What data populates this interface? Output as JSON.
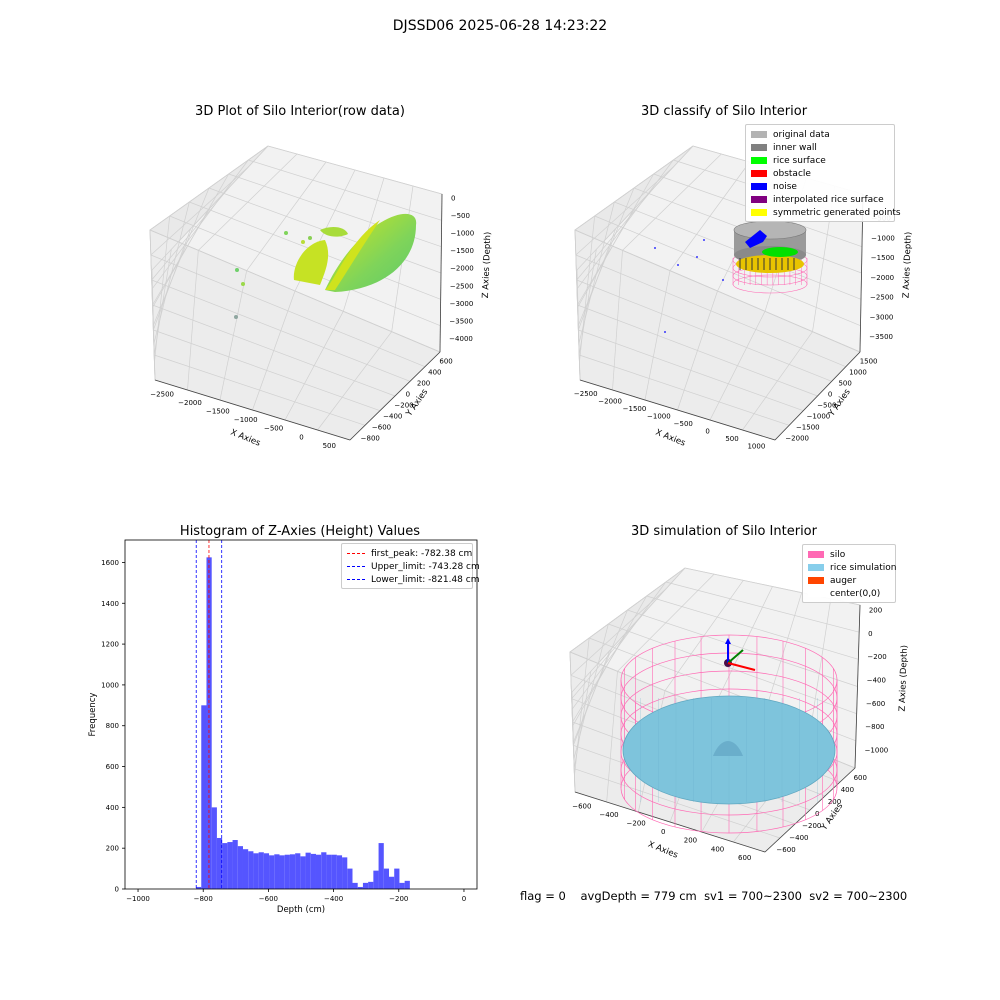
{
  "suptitle": "DJSSD06 2025-06-28 14:23:22",
  "panels": {
    "raw": {
      "title": "3D Plot of Silo Interior(row data)",
      "xlabel": "X Axies",
      "ylabel": "Y Axies",
      "zlabel": "Z Axies (Depth)",
      "xticks": [
        "−2500",
        "−2000",
        "−1500",
        "−1000",
        "−500",
        "0",
        "500"
      ],
      "yticks": [
        "−800",
        "−600",
        "−400",
        "−200",
        "0",
        "200",
        "400",
        "600"
      ],
      "zticks": [
        "0",
        "−500",
        "−1000",
        "−1500",
        "−2000",
        "−2500",
        "−3000",
        "−3500",
        "−4000"
      ]
    },
    "classify": {
      "title": "3D classify of Silo Interior",
      "xlabel": "X Axies",
      "ylabel": "Y Axies",
      "zlabel": "Z Axies (Depth)",
      "xticks": [
        "−2500",
        "−2000",
        "−1500",
        "−1000",
        "−500",
        "0",
        "500",
        "1000"
      ],
      "yticks": [
        "−2000",
        "−1500",
        "−1000",
        "−500",
        "0",
        "500",
        "1000",
        "1500"
      ],
      "zticks": [
        "0",
        "−500",
        "−1000",
        "−1500",
        "−2000",
        "−2500",
        "−3000",
        "−3500"
      ],
      "legend": [
        {
          "label": "original data",
          "color": "#b3b3b3"
        },
        {
          "label": "inner wall",
          "color": "#808080"
        },
        {
          "label": "rice surface",
          "color": "#00ff00"
        },
        {
          "label": "obstacle",
          "color": "#ff0000"
        },
        {
          "label": "noise",
          "color": "#0000ff"
        },
        {
          "label": "interpolated rice surface",
          "color": "#800080"
        },
        {
          "label": "symmetric generated points",
          "color": "#ffff00"
        }
      ]
    },
    "histogram": {
      "title": "Histogram of Z-Axies (Height) Values",
      "xlabel": "Depth (cm)",
      "ylabel": "Frequency",
      "legend": [
        {
          "label": "first_peak: -782.38 cm",
          "color": "#ff0000"
        },
        {
          "label": "Upper_limit: -743.28 cm",
          "color": "#0000ff"
        },
        {
          "label": "Lower_limit: -821.48 cm",
          "color": "#0000ff"
        }
      ]
    },
    "simulation": {
      "title": "3D simulation of Silo Interior",
      "xlabel": "X Axies",
      "ylabel": "Y Axies",
      "zlabel": "Z Axies (Depth)",
      "xticks": [
        "−600",
        "−400",
        "−200",
        "0",
        "200",
        "400",
        "600"
      ],
      "yticks": [
        "−600",
        "−400",
        "−200",
        "0",
        "200",
        "400",
        "600"
      ],
      "zticks": [
        "200",
        "0",
        "−200",
        "−400",
        "−600",
        "−800",
        "−1000"
      ],
      "legend": [
        {
          "label": "silo",
          "color": "#ff69b4"
        },
        {
          "label": "rice simulation",
          "color": "#87ceeb"
        },
        {
          "label": "auger",
          "color": "#ff4500"
        },
        {
          "label": "center(0,0)",
          "color": "#ffffff"
        }
      ]
    }
  },
  "status": {
    "flag": "flag = 0",
    "avg": "avgDepth = 779 cm",
    "sv1": "sv1 = 700~2300",
    "sv2": "sv2 = 700~2300"
  },
  "chart_data": [
    {
      "type": "scatter",
      "title": "3D Plot of Silo Interior(row data)",
      "xlabel": "X Axies",
      "ylabel": "Y Axies",
      "zlabel": "Z Axies (Depth)",
      "xlim": [
        -2600,
        600
      ],
      "ylim": [
        -800,
        700
      ],
      "zlim": [
        -4000,
        0
      ],
      "grid": true
    },
    {
      "type": "scatter",
      "title": "3D classify of Silo Interior",
      "xlabel": "X Axies",
      "ylabel": "Y Axies",
      "zlabel": "Z Axies (Depth)",
      "xlim": [
        -2600,
        1000
      ],
      "ylim": [
        -2000,
        1700
      ],
      "zlim": [
        -3600,
        0
      ],
      "series": [
        {
          "name": "original data"
        },
        {
          "name": "inner wall"
        },
        {
          "name": "rice surface"
        },
        {
          "name": "obstacle"
        },
        {
          "name": "noise"
        },
        {
          "name": "interpolated rice surface"
        },
        {
          "name": "symmetric generated points"
        }
      ],
      "legend_position": "top-right",
      "grid": true
    },
    {
      "type": "bar",
      "title": "Histogram of Z-Axies (Height) Values",
      "xlabel": "Depth (cm)",
      "ylabel": "Frequency",
      "xlim": [
        -1040,
        40
      ],
      "ylim": [
        0,
        1710
      ],
      "xticks": [
        -1000,
        -800,
        -600,
        -400,
        -200,
        0
      ],
      "yticks": [
        0,
        200,
        400,
        600,
        800,
        1000,
        1200,
        1400,
        1600
      ],
      "bin_width": 16,
      "bins": [
        [
          -822,
          10
        ],
        [
          -806,
          900
        ],
        [
          -790,
          1625
        ],
        [
          -774,
          400
        ],
        [
          -758,
          250
        ],
        [
          -742,
          225
        ],
        [
          -726,
          230
        ],
        [
          -710,
          240
        ],
        [
          -694,
          210
        ],
        [
          -678,
          195
        ],
        [
          -662,
          185
        ],
        [
          -646,
          175
        ],
        [
          -630,
          180
        ],
        [
          -614,
          175
        ],
        [
          -598,
          165
        ],
        [
          -582,
          170
        ],
        [
          -566,
          165
        ],
        [
          -550,
          168
        ],
        [
          -534,
          170
        ],
        [
          -518,
          175
        ],
        [
          -502,
          160
        ],
        [
          -486,
          178
        ],
        [
          -470,
          172
        ],
        [
          -454,
          168
        ],
        [
          -438,
          180
        ],
        [
          -422,
          168
        ],
        [
          -406,
          168
        ],
        [
          -390,
          165
        ],
        [
          -374,
          155
        ],
        [
          -358,
          100
        ],
        [
          -342,
          30
        ],
        [
          -326,
          10
        ],
        [
          -310,
          30
        ],
        [
          -294,
          35
        ],
        [
          -278,
          90
        ],
        [
          -262,
          225
        ],
        [
          -246,
          100
        ],
        [
          -230,
          60
        ],
        [
          -214,
          100
        ],
        [
          -198,
          30
        ],
        [
          -182,
          40
        ]
      ],
      "vlines": [
        {
          "name": "first_peak: -782.38 cm",
          "x": -782.38,
          "color": "#ff0000"
        },
        {
          "name": "Upper_limit: -743.28 cm",
          "x": -743.28,
          "color": "#0000ff"
        },
        {
          "name": "Lower_limit: -821.48 cm",
          "x": -821.48,
          "color": "#0000ff"
        }
      ],
      "legend_position": "top-right"
    },
    {
      "type": "scatter",
      "title": "3D simulation of Silo Interior",
      "xlabel": "X Axies",
      "ylabel": "Y Axies",
      "zlabel": "Z Axies (Depth)",
      "xlim": [
        -700,
        700
      ],
      "ylim": [
        -700,
        700
      ],
      "zlim": [
        -1100,
        250
      ],
      "series": [
        {
          "name": "silo"
        },
        {
          "name": "rice simulation"
        },
        {
          "name": "auger"
        },
        {
          "name": "center(0,0)"
        }
      ],
      "legend_position": "top-right",
      "grid": true
    }
  ]
}
